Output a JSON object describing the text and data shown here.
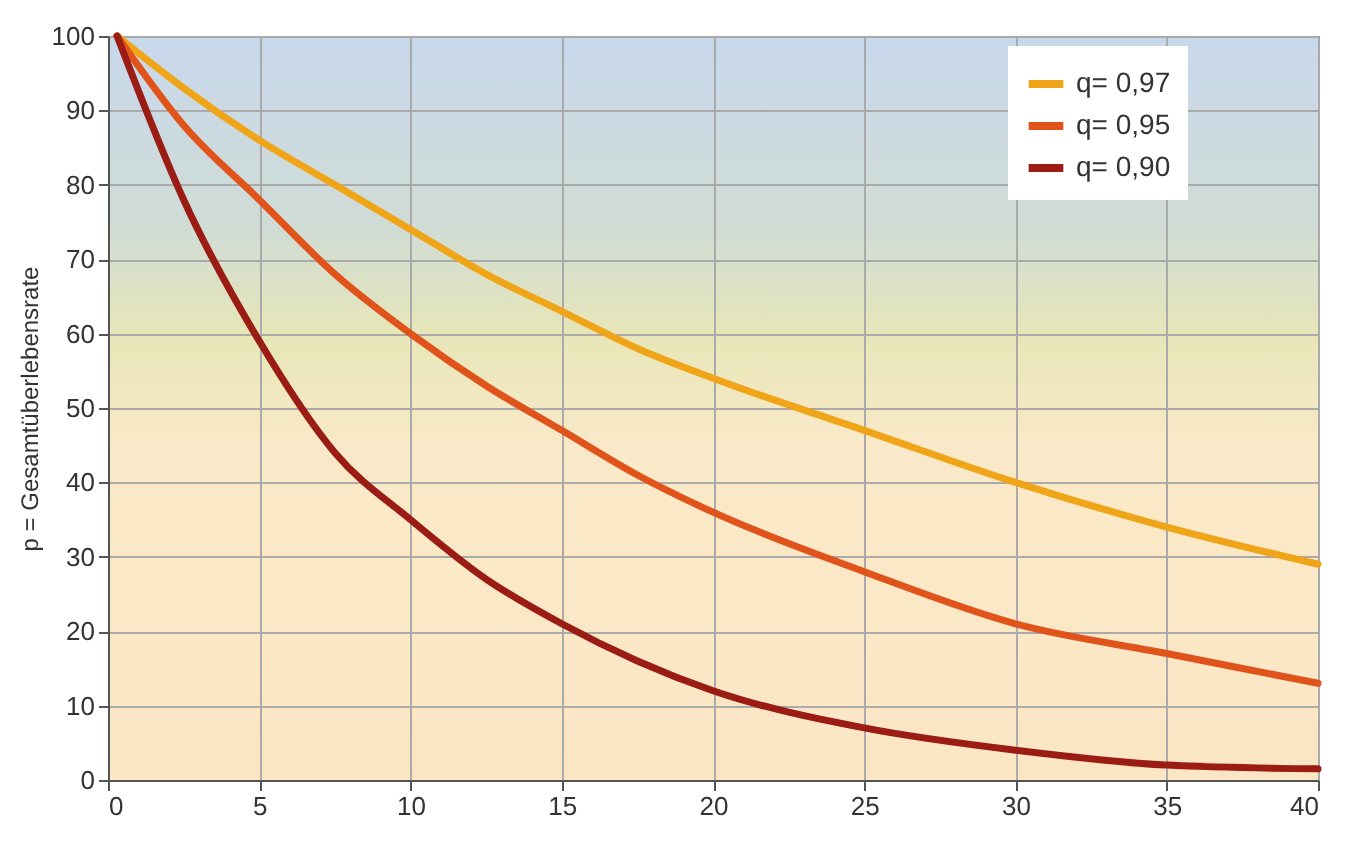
{
  "chart_data": {
    "type": "line",
    "ylabel": "p = Gesamtüberlebensrate",
    "x": [
      0.3,
      2.5,
      5,
      7.5,
      10,
      12.5,
      15,
      17.5,
      20,
      25,
      30,
      35,
      40
    ],
    "series": [
      {
        "name": "q= 0,97",
        "color": "#f0a418",
        "values": [
          100,
          93,
          86,
          80,
          74,
          68,
          63,
          58,
          54,
          47,
          40,
          34,
          29
        ]
      },
      {
        "name": "q= 0,95",
        "color": "#e0541c",
        "values": [
          100,
          88,
          78,
          68,
          60,
          53,
          47,
          41,
          36,
          28,
          21,
          17,
          13
        ]
      },
      {
        "name": "q= 0,90",
        "color": "#9b1c14",
        "values": [
          100,
          78,
          59,
          44,
          35,
          27,
          21,
          16,
          12,
          7,
          4,
          2,
          1.5
        ]
      }
    ],
    "xlim": [
      0,
      40
    ],
    "xticks": [
      0,
      5,
      10,
      15,
      20,
      25,
      30,
      35,
      40
    ],
    "ylim": [
      0,
      100
    ],
    "yticks": [
      0,
      10,
      20,
      30,
      40,
      50,
      60,
      70,
      80,
      90,
      100
    ],
    "grid": true,
    "legend": "top right",
    "marker": "none",
    "line_style": "solid"
  }
}
